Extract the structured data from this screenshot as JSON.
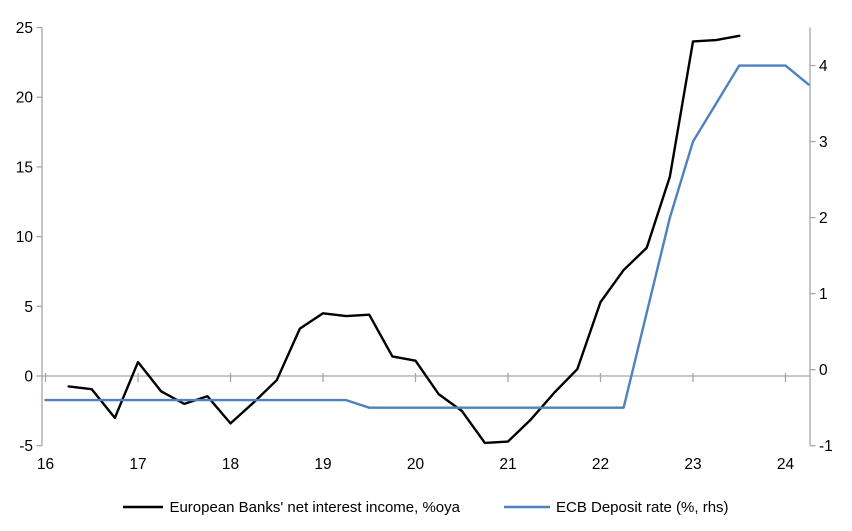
{
  "chart_data": {
    "type": "line",
    "title": "",
    "x_unit": "quarter",
    "x_start": "2016Q1",
    "x_tick_labels": [
      "16",
      "17",
      "18",
      "19",
      "20",
      "21",
      "22",
      "23",
      "24"
    ],
    "left_axis": {
      "ticks": [
        "-5",
        "0",
        "5",
        "10",
        "15",
        "20",
        "25"
      ],
      "tick_values": [
        -5,
        0,
        5,
        10,
        15,
        20,
        25
      ],
      "range": [
        -5,
        25
      ]
    },
    "right_axis": {
      "ticks": [
        "-1",
        "0",
        "1",
        "2",
        "3",
        "4"
      ],
      "tick_values": [
        -1,
        0,
        1,
        2,
        3,
        4
      ],
      "range": [
        -1,
        4.5
      ]
    },
    "grid": "off",
    "legend_position": "bottom",
    "series": [
      {
        "name": "European Banks' net interest income, %oya",
        "axis": "left",
        "color": "#000000",
        "start_quarter": "2016Q2",
        "start_index": 1,
        "values": [
          -0.75,
          -0.95,
          -3.0,
          1.0,
          -1.1,
          -2.0,
          -1.45,
          -3.4,
          -1.9,
          -0.3,
          3.4,
          4.5,
          4.3,
          4.4,
          1.4,
          1.1,
          -1.3,
          -2.5,
          -4.8,
          -4.7,
          -3.1,
          -1.2,
          0.5,
          5.3,
          7.6,
          9.2,
          14.3,
          24.0,
          24.1,
          24.4
        ]
      },
      {
        "name": "ECB Deposit rate (%, rhs)",
        "axis": "right",
        "color": "#4f81bd",
        "start_quarter": "2016Q1",
        "start_index": 0,
        "values": [
          -0.4,
          -0.4,
          -0.4,
          -0.4,
          -0.4,
          -0.4,
          -0.4,
          -0.4,
          -0.4,
          -0.4,
          -0.4,
          -0.4,
          -0.4,
          -0.4,
          -0.5,
          -0.5,
          -0.5,
          -0.5,
          -0.5,
          -0.5,
          -0.5,
          -0.5,
          -0.5,
          -0.5,
          -0.5,
          -0.5,
          0.75,
          2.0,
          3.0,
          3.5,
          4.0,
          4.0,
          4.0,
          3.75
        ]
      }
    ],
    "colors": {
      "axis_gray": "#a6a6a6",
      "text": "#000000"
    }
  }
}
